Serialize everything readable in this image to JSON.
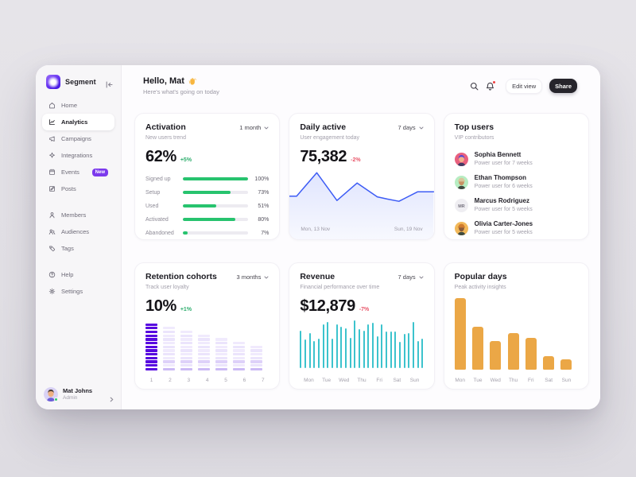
{
  "sidebar": {
    "brand": "Segment",
    "sections": [
      {
        "items": [
          {
            "label": "Home",
            "icon": "home-icon",
            "active": false
          },
          {
            "label": "Analytics",
            "icon": "analytics-icon",
            "active": true
          },
          {
            "label": "Campaigns",
            "icon": "campaigns-icon",
            "active": false
          },
          {
            "label": "Integrations",
            "icon": "integrations-icon",
            "active": false
          },
          {
            "label": "Events",
            "icon": "events-icon",
            "active": false,
            "badge": "New"
          },
          {
            "label": "Posts",
            "icon": "posts-icon",
            "active": false
          }
        ]
      },
      {
        "items": [
          {
            "label": "Members",
            "icon": "members-icon",
            "active": false
          },
          {
            "label": "Audiences",
            "icon": "audiences-icon",
            "active": false
          },
          {
            "label": "Tags",
            "icon": "tags-icon",
            "active": false
          }
        ]
      },
      {
        "items": [
          {
            "label": "Help",
            "icon": "help-icon",
            "active": false
          },
          {
            "label": "Settings",
            "icon": "settings-icon",
            "active": false
          }
        ]
      }
    ],
    "user": {
      "name": "Mat Johns",
      "role": "Admin",
      "status_color": "#2ecc71"
    }
  },
  "header": {
    "greeting": "Hello, Mat",
    "wave_icon": "wave-emoji",
    "subtitle": "Here's what's going on today",
    "edit_view_label": "Edit view",
    "share_label": "Share"
  },
  "cards": {
    "activation": {
      "title": "Activation",
      "subtitle": "New users trend",
      "range": "1 month",
      "value": "62%",
      "delta": "+5%",
      "delta_direction": "up"
    },
    "daily_active": {
      "title": "Daily active",
      "subtitle": "User engagement today",
      "range": "7 days",
      "value": "75,382",
      "delta": "-2%",
      "delta_direction": "down",
      "x_left": "Mon, 13 Nov",
      "x_right": "Sun, 19 Nov"
    },
    "top_users": {
      "title": "Top users",
      "subtitle": "VIP contributors",
      "users": [
        {
          "name": "Sophia Bennett",
          "note": "Power user for 7 weeks",
          "avatar": {
            "kind": "portrait",
            "bg": "#e8607e",
            "hair": "#5146d8",
            "skin": "#f2b18c",
            "style": "hair"
          }
        },
        {
          "name": "Ethan Thompson",
          "note": "Power user for 6 weeks",
          "avatar": {
            "kind": "portrait",
            "bg": "#b7edc2",
            "hair": "#d9c59b",
            "skin": "#c99364",
            "style": "hat"
          }
        },
        {
          "name": "Marcus Rodriguez",
          "note": "Power user for 5 weeks",
          "avatar": {
            "kind": "initials",
            "bg": "#efeef2",
            "text": "MR",
            "fg": "#75727e"
          }
        },
        {
          "name": "Olivia Carter-Jones",
          "note": "Power user for 5 weeks",
          "avatar": {
            "kind": "portrait",
            "bg": "#f2b95a",
            "hair": "#d07b2e",
            "skin": "#8a5b3a",
            "style": "hat"
          }
        }
      ]
    },
    "retention": {
      "title": "Retention cohorts",
      "subtitle": "Track user loyalty",
      "range": "3 months",
      "value": "10%",
      "delta": "+1%",
      "delta_direction": "up"
    },
    "revenue": {
      "title": "Revenue",
      "subtitle": "Financial performance over time",
      "range": "7 days",
      "value": "$12,879",
      "delta": "-7%",
      "delta_direction": "down"
    },
    "popular_days": {
      "title": "Popular days",
      "subtitle": "Peak activity insights"
    }
  },
  "chart_data": {
    "activation_funnel": {
      "type": "bar",
      "categories": [
        "Signed up",
        "Setup",
        "Used",
        "Activated",
        "Abandoned"
      ],
      "values": [
        100,
        73,
        51,
        80,
        7
      ],
      "unit": "%",
      "bar_color": "#27c36e"
    },
    "daily_active": {
      "type": "line",
      "x_labels_shown": [
        "Mon, 13 Nov",
        "Sun, 19 Nov"
      ],
      "points_pct": [
        [
          0,
          41
        ],
        [
          5,
          41
        ],
        [
          19,
          9
        ],
        [
          33,
          47
        ],
        [
          47,
          23
        ],
        [
          61,
          42
        ],
        [
          68,
          45
        ],
        [
          76,
          48
        ],
        [
          89,
          35
        ],
        [
          100,
          35
        ]
      ],
      "line_color": "#3d5cf5"
    },
    "retention_cohorts": {
      "type": "heatmap",
      "categories": [
        "1",
        "2",
        "3",
        "4",
        "5",
        "6",
        "7"
      ],
      "stripe_counts": [
        13,
        12,
        11,
        10,
        9,
        8,
        7
      ],
      "full_color": "#5708e0",
      "light_color": "#f0eafd",
      "accent_color": "#ded1f9",
      "bottom_color": "#ccbaf5"
    },
    "revenue": {
      "type": "bar",
      "categories": [
        "Mon",
        "Tue",
        "Wed",
        "Thu",
        "Fri",
        "Sat",
        "Sun"
      ],
      "bar_heights_pct": [
        78,
        60,
        74,
        57,
        61,
        91,
        96,
        62,
        92,
        87,
        84,
        63,
        100,
        81,
        78,
        92,
        95,
        67,
        92,
        76,
        77,
        76,
        55,
        72,
        74,
        97,
        57,
        62
      ],
      "bar_color": "#38c2cc"
    },
    "popular_days": {
      "type": "bar",
      "categories": [
        "Mon",
        "Tue",
        "Wed",
        "Thu",
        "Fri",
        "Sat",
        "Sun"
      ],
      "values_pct": [
        100,
        60,
        40,
        51,
        44,
        19,
        14
      ],
      "bar_color": "#eba746"
    }
  }
}
